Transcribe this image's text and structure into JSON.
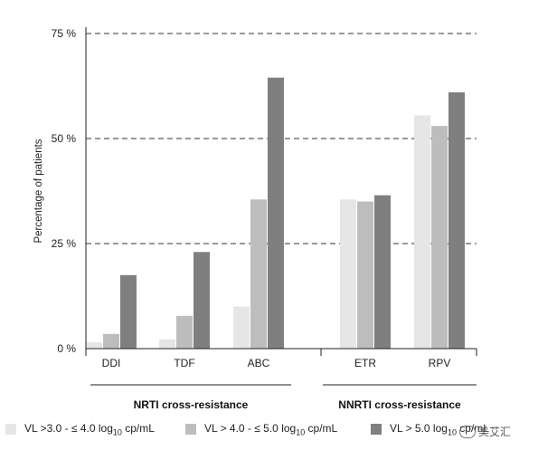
{
  "chart_data": {
    "type": "bar",
    "ylabel": "Percentage of patients",
    "ylim": [
      0,
      75
    ],
    "yticks": [
      {
        "value": 0,
        "label": "0 %"
      },
      {
        "value": 25,
        "label": "25 %"
      },
      {
        "value": 50,
        "label": "50 %"
      },
      {
        "value": 75,
        "label": "75 %"
      }
    ],
    "grid": "dashed horizontal at 25, 50, 75",
    "categories": [
      "DDI",
      "TDF",
      "ABC",
      "ETR",
      "RPV"
    ],
    "groups": [
      {
        "label": "NRTI cross-resistance",
        "categories": [
          "DDI",
          "TDF",
          "ABC"
        ]
      },
      {
        "label": "NNRTI cross-resistance",
        "categories": [
          "ETR",
          "RPV"
        ]
      }
    ],
    "series": [
      {
        "name": "VL >3.0 - ≤ 4.0 log10 cp/mL",
        "color": "#e6e6e6",
        "values": [
          1.5,
          2.2,
          10,
          35.5,
          55.5
        ]
      },
      {
        "name": "VL > 4.0 - ≤ 5.0 log10 cp/mL",
        "color": "#bdbdbd",
        "values": [
          3.5,
          7.8,
          35.5,
          35,
          53
        ]
      },
      {
        "name": "VL > 5.0 log10 cp/mL",
        "color": "#7f7f7f",
        "values": [
          17.5,
          23,
          64.5,
          36.5,
          61
        ]
      }
    ],
    "legend_position": "bottom"
  },
  "legend": {
    "items": [
      {
        "pre": "VL >3.0 - ≤ 4.0 log",
        "sub": "10",
        "post": " cp/mL"
      },
      {
        "pre": "VL > 4.0 - ≤ 5.0 log",
        "sub": "10",
        "post": " cp/mL"
      },
      {
        "pre": "VL > 5.0 log",
        "sub": "10",
        "post": " cp/mL"
      }
    ]
  },
  "watermark": {
    "text": "美艾汇"
  }
}
